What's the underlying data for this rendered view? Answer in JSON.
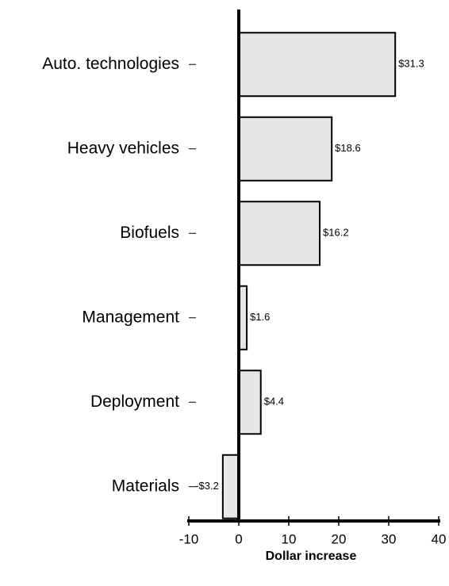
{
  "chart_data": {
    "type": "barh",
    "categories": [
      "Auto. technologies",
      "Heavy vehicles",
      "Biofuels",
      "Management",
      "Deployment",
      "Materials"
    ],
    "values": [
      31.3,
      18.6,
      16.2,
      1.6,
      4.4,
      -3.2
    ],
    "value_labels": [
      "$31.3",
      "$18.6",
      "$16.2",
      "$1.6",
      "$4.4",
      "-$3.2"
    ],
    "color": "#e6e6e6",
    "xlabel": "Dollar increase",
    "xlim": [
      -10,
      40
    ],
    "xticks": [
      -10,
      0,
      10,
      20,
      30,
      40
    ]
  }
}
